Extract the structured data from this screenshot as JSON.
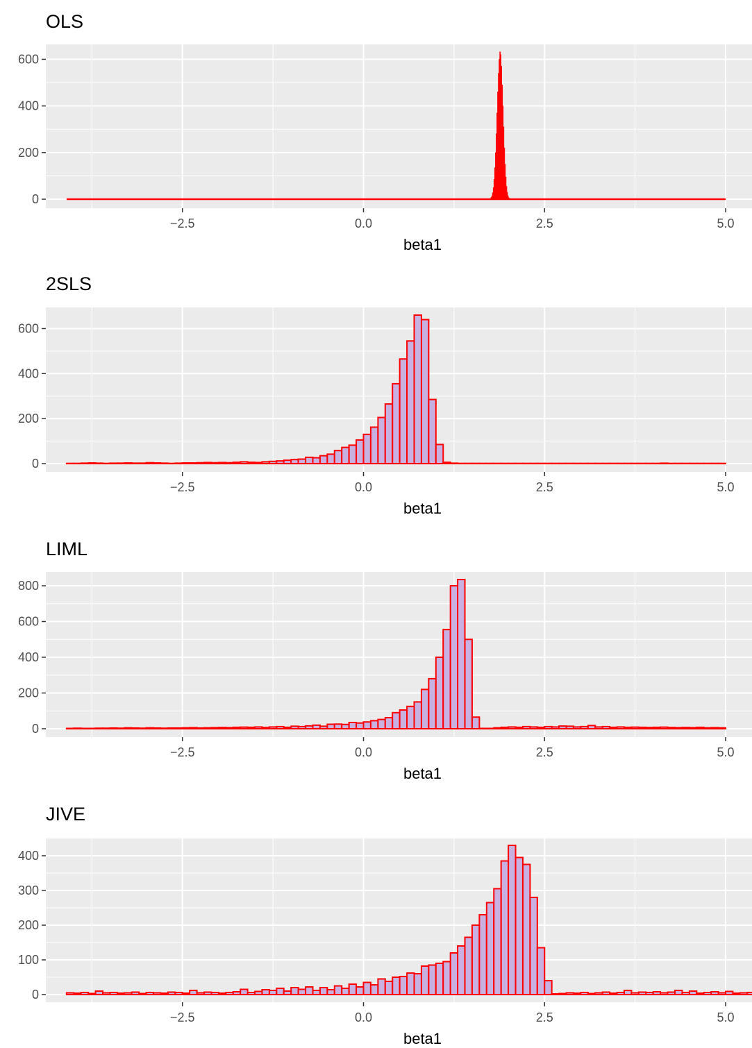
{
  "chart_data": [
    {
      "type": "bar",
      "title": "OLS",
      "xlabel": "beta1",
      "ylabel": "",
      "xlim": [
        -4.1,
        5.0
      ],
      "ylim": [
        0,
        640
      ],
      "x_ticks": [
        -2.5,
        0.0,
        2.5,
        5.0
      ],
      "x_tick_labels": [
        "−2.5",
        "0.0",
        "2.5",
        "5.0"
      ],
      "y_ticks": [
        0,
        200,
        400,
        600
      ],
      "y_tick_labels": [
        "0",
        "200",
        "400",
        "600"
      ],
      "bin_width": 0.01,
      "bin_start": 1.71,
      "values": [
        0,
        0,
        1,
        2,
        4,
        8,
        15,
        28,
        50,
        85,
        135,
        200,
        280,
        370,
        460,
        540,
        600,
        632,
        620,
        570,
        490,
        400,
        310,
        220,
        150,
        95,
        55,
        30,
        15,
        7,
        3,
        1,
        0,
        0
      ],
      "baseline": [
        -4.1,
        5.0
      ],
      "colors": {
        "fill": "#ff0000",
        "outline": "#ff0000"
      },
      "grid": true,
      "legend": "none"
    },
    {
      "type": "bar",
      "title": "2SLS",
      "xlabel": "beta1",
      "ylabel": "",
      "xlim": [
        -4.1,
        5.0
      ],
      "ylim": [
        0,
        660
      ],
      "x_ticks": [
        -2.5,
        0.0,
        2.5,
        5.0
      ],
      "x_tick_labels": [
        "−2.5",
        "0.0",
        "2.5",
        "5.0"
      ],
      "y_ticks": [
        0,
        200,
        400,
        600
      ],
      "y_tick_labels": [
        "0",
        "200",
        "400",
        "600"
      ],
      "bin_width": 0.1,
      "bin_start": -4.1,
      "values": [
        1,
        1,
        2,
        3,
        2,
        1,
        2,
        2,
        3,
        2,
        2,
        4,
        3,
        2,
        1,
        2,
        3,
        3,
        4,
        5,
        4,
        5,
        4,
        6,
        8,
        6,
        5,
        8,
        10,
        12,
        15,
        18,
        20,
        28,
        26,
        35,
        42,
        58,
        72,
        82,
        105,
        130,
        162,
        205,
        265,
        355,
        465,
        545,
        660,
        640,
        285,
        85,
        6,
        2,
        1,
        1,
        1,
        1,
        1,
        1,
        1,
        1,
        1,
        1,
        1,
        1,
        1,
        1,
        1,
        1,
        1,
        1,
        1,
        1,
        1,
        1,
        1,
        1,
        1,
        1,
        1,
        1,
        2,
        1,
        1,
        1,
        1,
        1,
        1,
        1,
        1
      ],
      "colors": {
        "fill": "#c8b0e0",
        "outline": "#ff0000"
      },
      "grid": true,
      "legend": "none"
    },
    {
      "type": "bar",
      "title": "LIML",
      "xlabel": "beta1",
      "ylabel": "",
      "xlim": [
        -4.1,
        5.0
      ],
      "ylim": [
        0,
        835
      ],
      "x_ticks": [
        -2.5,
        0.0,
        2.5,
        5.0
      ],
      "x_tick_labels": [
        "−2.5",
        "0.0",
        "2.5",
        "5.0"
      ],
      "y_ticks": [
        0,
        200,
        400,
        600,
        800
      ],
      "y_tick_labels": [
        "0",
        "200",
        "400",
        "600",
        "800"
      ],
      "bin_width": 0.1,
      "bin_start": -4.1,
      "values": [
        2,
        3,
        2,
        2,
        3,
        3,
        4,
        3,
        5,
        4,
        3,
        5,
        4,
        3,
        4,
        4,
        5,
        6,
        4,
        5,
        6,
        7,
        6,
        8,
        9,
        8,
        10,
        7,
        10,
        12,
        8,
        14,
        12,
        16,
        20,
        14,
        25,
        26,
        24,
        35,
        32,
        38,
        45,
        52,
        62,
        90,
        105,
        125,
        150,
        220,
        280,
        400,
        555,
        800,
        835,
        500,
        65,
        2,
        2,
        5,
        8,
        10,
        8,
        12,
        10,
        8,
        12,
        10,
        15,
        14,
        10,
        12,
        18,
        10,
        12,
        8,
        10,
        8,
        9,
        8,
        7,
        8,
        9,
        7,
        6,
        7,
        6,
        8,
        5,
        6,
        5
      ],
      "colors": {
        "fill": "#c8b0e0",
        "outline": "#ff0000"
      },
      "grid": true,
      "legend": "none"
    },
    {
      "type": "bar",
      "title": "JIVE",
      "xlabel": "beta1",
      "ylabel": "",
      "xlim": [
        -4.1,
        5.0
      ],
      "ylim": [
        0,
        432
      ],
      "x_ticks": [
        -2.5,
        0.0,
        2.5,
        5.0
      ],
      "x_tick_labels": [
        "−2.5",
        "0.0",
        "2.5",
        "5.0"
      ],
      "y_ticks": [
        0,
        100,
        200,
        300,
        400
      ],
      "y_tick_labels": [
        "0",
        "100",
        "200",
        "300",
        "400"
      ],
      "bin_width": 0.1,
      "bin_start": -4.1,
      "values": [
        5,
        4,
        6,
        3,
        10,
        5,
        6,
        4,
        5,
        7,
        3,
        6,
        5,
        4,
        7,
        6,
        4,
        12,
        5,
        7,
        6,
        4,
        6,
        8,
        15,
        6,
        9,
        14,
        12,
        18,
        10,
        20,
        15,
        22,
        12,
        20,
        14,
        25,
        18,
        30,
        22,
        35,
        28,
        45,
        38,
        50,
        52,
        62,
        60,
        82,
        85,
        90,
        95,
        120,
        140,
        165,
        200,
        230,
        265,
        305,
        385,
        430,
        395,
        375,
        280,
        135,
        40,
        2,
        3,
        5,
        4,
        6,
        3,
        5,
        7,
        4,
        6,
        12,
        5,
        7,
        6,
        8,
        5,
        7,
        12,
        6,
        10,
        4,
        6,
        8,
        5,
        9,
        4,
        5,
        6,
        5,
        4,
        3,
        4,
        5,
        3
      ],
      "colors": {
        "fill": "#c8b0e0",
        "outline": "#ff0000"
      },
      "grid": true,
      "legend": "none"
    }
  ]
}
